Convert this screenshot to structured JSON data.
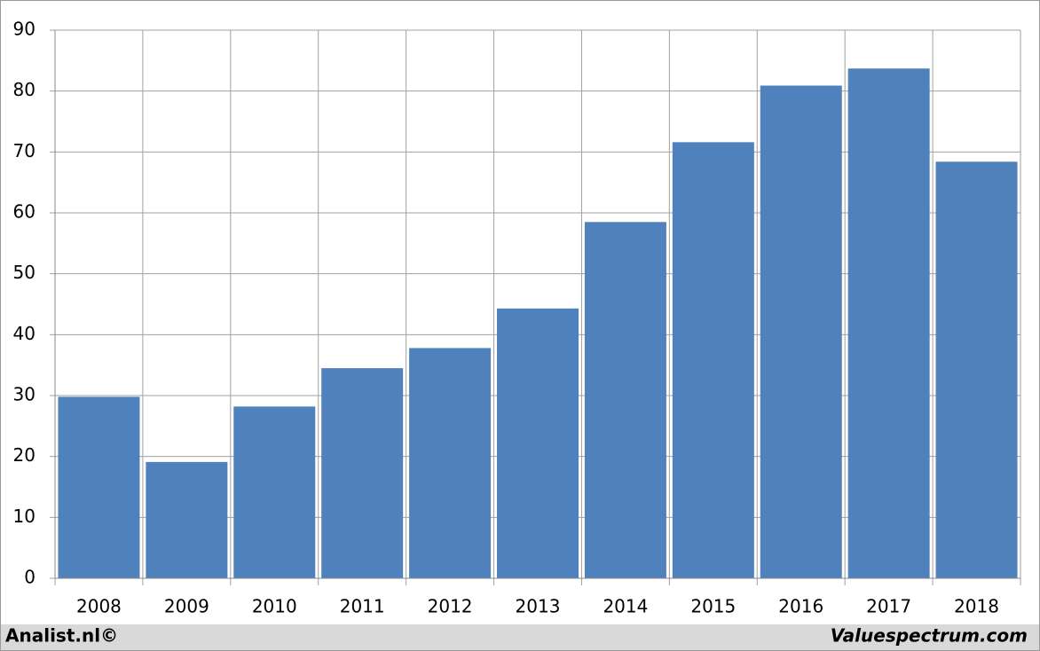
{
  "chart_data": {
    "type": "bar",
    "categories": [
      "2008",
      "2009",
      "2010",
      "2011",
      "2012",
      "2013",
      "2014",
      "2015",
      "2016",
      "2017",
      "2018"
    ],
    "values": [
      29.8,
      19.1,
      28.2,
      34.5,
      37.8,
      44.3,
      58.5,
      71.6,
      80.9,
      83.7,
      68.4
    ],
    "color": "#4f81bd",
    "ylim": [
      0,
      90
    ],
    "yticks": [
      0,
      10,
      20,
      30,
      40,
      50,
      60,
      70,
      80,
      90
    ],
    "grid": true
  },
  "footer": {
    "left": "Analist.nl©",
    "right": "Valuespectrum.com"
  }
}
